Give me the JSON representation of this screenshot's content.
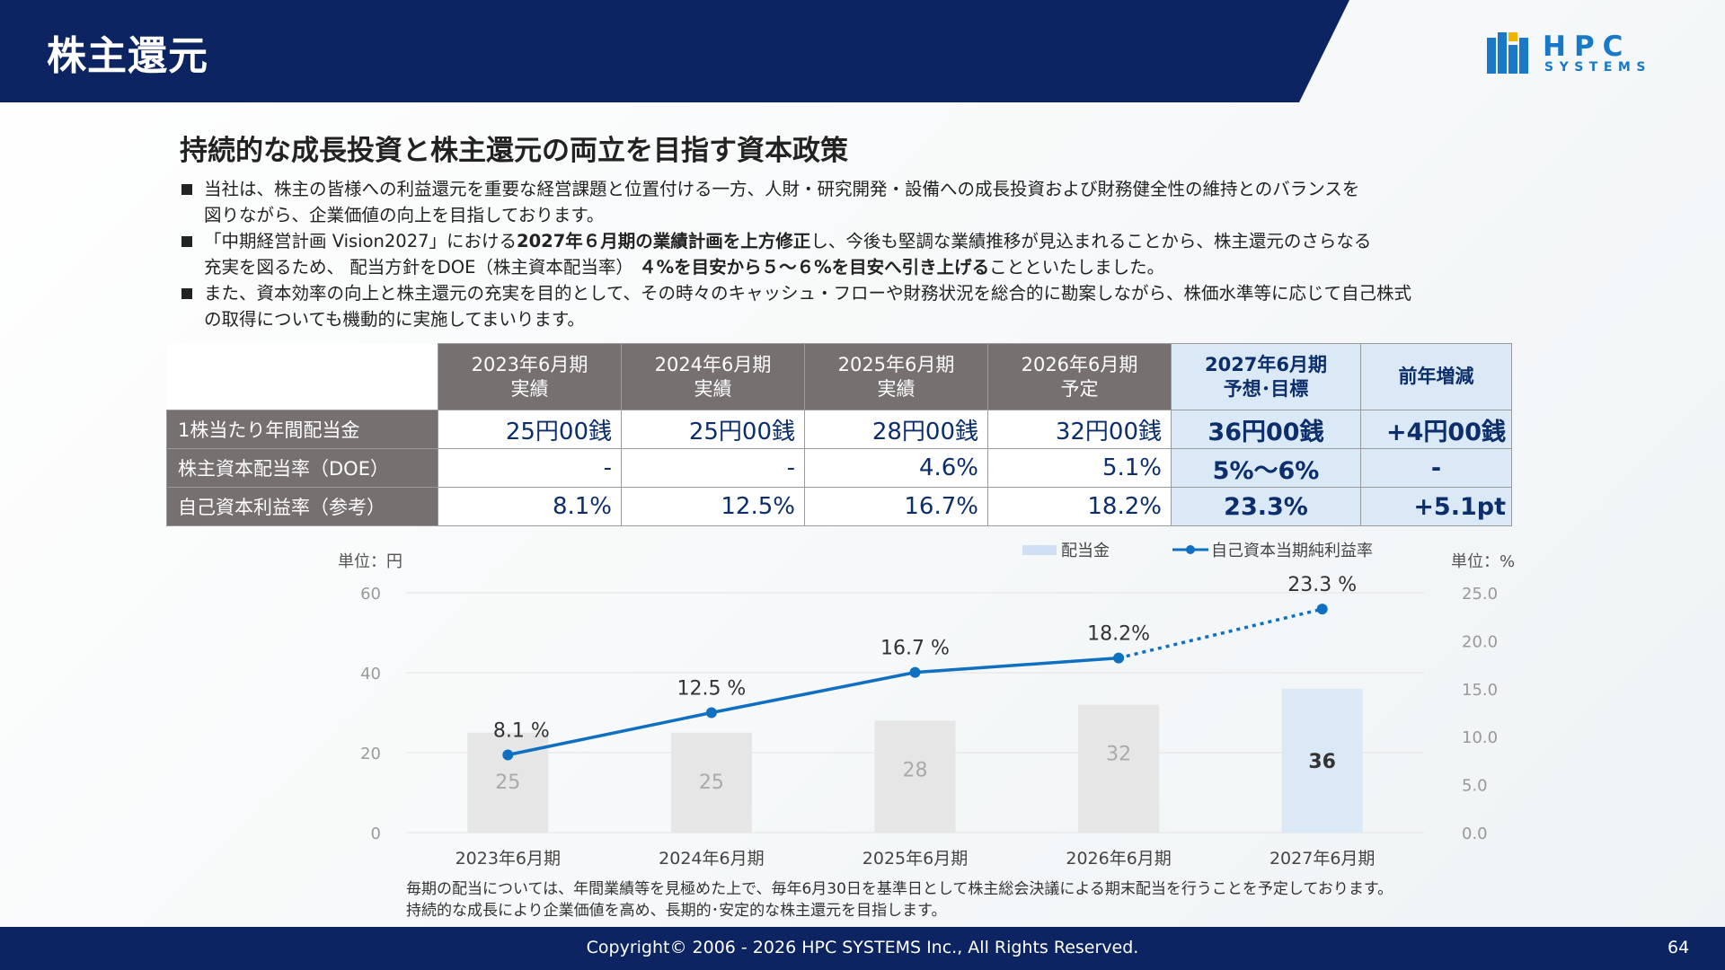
{
  "header": {
    "title": "株主還元",
    "accent": "#0c2461"
  },
  "logo": {
    "top": "HPC",
    "bottom": "SYSTEMS",
    "color": "#1978c8"
  },
  "subtitle": "持続的な成長投資と株主還元の両立を目指す資本政策",
  "bullets": [
    {
      "line1": "当社は、株主の皆様への利益還元を重要な経営課題と位置付ける一方、人財・研究開発・設備への成長投資および財務健全性の維持とのバランスを",
      "line2": "図りながら、企業価値の向上を目指しております。"
    },
    {
      "l1a": "「中期経営計画 Vision2027」における",
      "l1b": "2027年６月期の業績計画を上方修正",
      "l1c": "し、今後も堅調な業績推移が見込まれることから、株主還元のさらなる",
      "l2a": "充実を図るため、 配当方針をDOE（株主資本配当率） ",
      "l2b": "４%を目安から５～６%を目安へ引き上げる",
      "l2c": "ことといたしました。"
    },
    {
      "line1": "また、資本効率の向上と株主還元の充実を目的として、その時々のキャッシュ・フローや財務状況を総合的に勘案しながら、株価水準等に応じて自己株式",
      "line2": "の取得についても機動的に実施してまいります。"
    }
  ],
  "table": {
    "columns": [
      {
        "line1": "2023年6月期",
        "line2": "実績"
      },
      {
        "line1": "2024年6月期",
        "line2": "実績"
      },
      {
        "line1": "2025年6月期",
        "line2": "実績"
      },
      {
        "line1": "2026年6月期",
        "line2": "予定"
      },
      {
        "line1": "2027年6月期",
        "line2": "予想･目標"
      },
      {
        "line1": "前年増減",
        "line2": ""
      }
    ],
    "rows": [
      {
        "label": "1株当たり年間配当金",
        "cells": [
          "25円00銭",
          "25円00銭",
          "28円00銭",
          "32円00銭",
          "36円00銭",
          "+4円00銭"
        ]
      },
      {
        "label": "株主資本配当率（DOE）",
        "cells": [
          "-",
          "-",
          "4.6%",
          "5.1%",
          "5%～6%",
          "-"
        ]
      },
      {
        "label": "自己資本利益率（参考）",
        "cells": [
          "8.1%",
          "12.5%",
          "16.7%",
          "18.2%",
          "23.3%",
          "+5.1pt"
        ]
      }
    ]
  },
  "chart_data": {
    "type": "bar",
    "categories": [
      "2023年6月期",
      "2024年6月期",
      "2025年6月期",
      "2026年6月期",
      "2027年6月期"
    ],
    "series": [
      {
        "name": "配当金",
        "type": "bar",
        "axis": "left",
        "values": [
          25,
          25,
          28,
          32,
          36
        ],
        "labels": [
          "25",
          "25",
          "28",
          "32",
          "36"
        ],
        "color": "#e6e6e6",
        "highlight_color": "#dbe8f6"
      },
      {
        "name": "自己資本当期純利益率",
        "type": "line",
        "axis": "right",
        "values": [
          8.1,
          12.5,
          16.7,
          18.2,
          23.3
        ],
        "labels": [
          "8.1 %",
          "12.5 %",
          "16.7 %",
          "18.2%",
          "23.3 %"
        ],
        "color": "#0f6fc0",
        "dashed_last_segment": true
      }
    ],
    "left_axis": {
      "unit_label": "単位：円",
      "ylim": [
        0,
        60
      ],
      "ticks": [
        "0",
        "20",
        "40",
        "60"
      ]
    },
    "right_axis": {
      "unit_label": "単位：%",
      "ylim": [
        0,
        25
      ],
      "ticks": [
        "0.0",
        "5.0",
        "10.0",
        "15.0",
        "20.0",
        "25.0"
      ]
    },
    "legend_position": "top-right",
    "grid": true
  },
  "notes": [
    "毎期の配当については、年間業績等を見極めた上で、毎年6月30日を基準日として株主総会決議による期末配当を行うことを予定しております。",
    "持続的な成長により企業価値を高め、長期的･安定的な株主還元を目指します。"
  ],
  "footer": {
    "copyright": "Copyright© 2006 - 2026 HPC SYSTEMS Inc., All Rights Reserved.",
    "page": "64"
  }
}
